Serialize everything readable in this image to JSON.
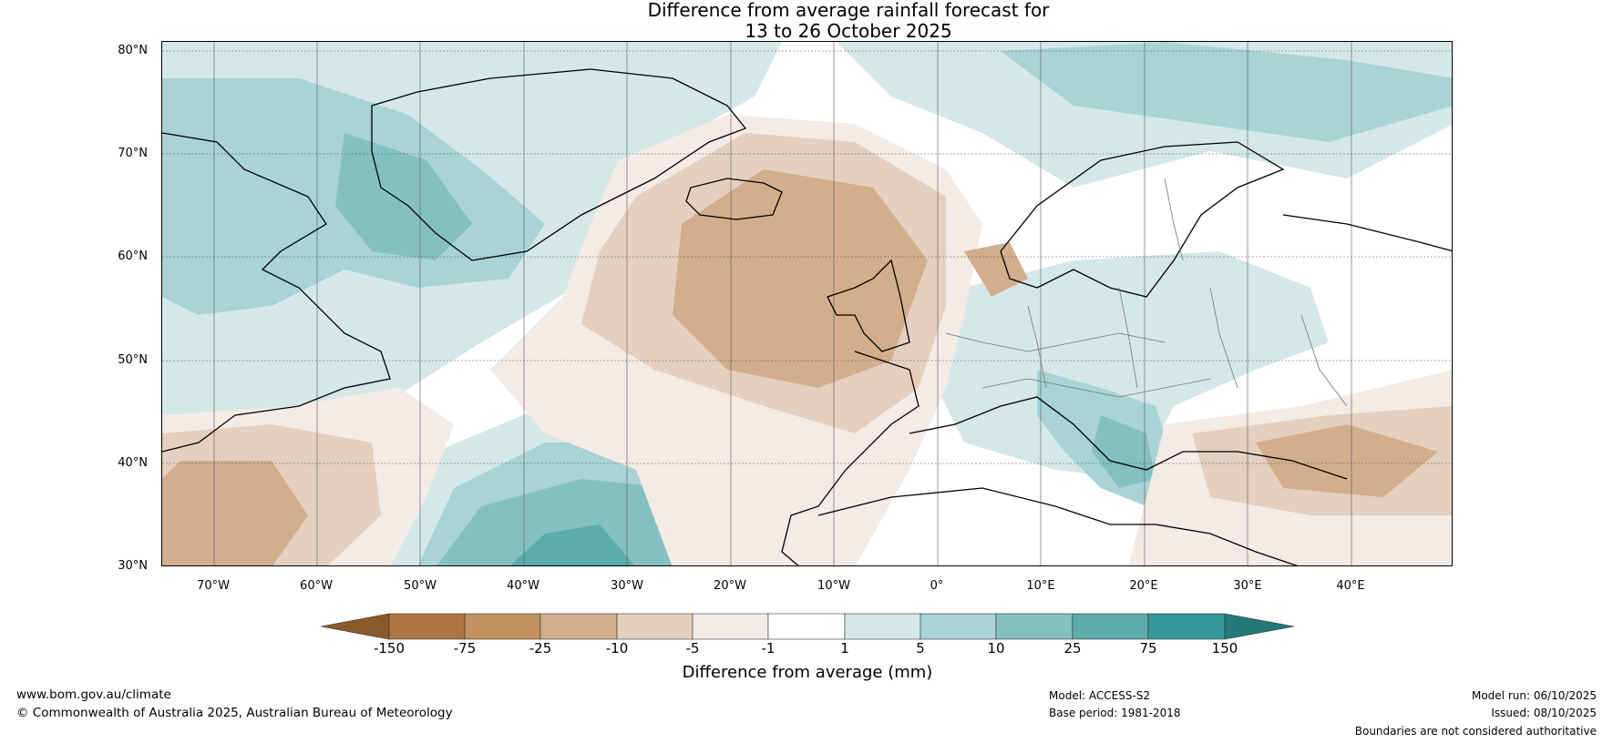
{
  "title": {
    "line1": "Difference from average rainfall forecast for",
    "line2": "13 to 26 October 2025"
  },
  "map": {
    "latitude_labels": [
      "80°N",
      "70°N",
      "60°N",
      "50°N",
      "40°N",
      "30°N"
    ],
    "longitude_labels": [
      "70°W",
      "60°W",
      "50°W",
      "40°W",
      "30°W",
      "20°W",
      "10°W",
      "0°",
      "10°E",
      "20°E",
      "30°E",
      "40°E"
    ]
  },
  "legend": {
    "title": "Difference from average (mm)",
    "ticks": [
      "-150",
      "-75",
      "-25",
      "-10",
      "-5",
      "-1",
      "1",
      "5",
      "10",
      "25",
      "75",
      "150"
    ],
    "colors": [
      "#8b5a2b",
      "#ad7643",
      "#c0915f",
      "#d2ae8d",
      "#e5cfbe",
      "#f3ebe5",
      "#ffffff",
      "#d5e8e8",
      "#a9d3d4",
      "#84c0c0",
      "#5cacac",
      "#36999a",
      "#24797a"
    ]
  },
  "footer": {
    "website": "www.bom.gov.au/climate",
    "copyright": "© Commonwealth of Australia 2025, Australian Bureau of Meteorology",
    "model": "Model: ACCESS-S2",
    "base_period": "Base period: 1981-2018",
    "model_run": "Model run: 06/10/2025",
    "issued": "Issued: 08/10/2025",
    "disclaimer": "Boundaries are not considered authoritative"
  }
}
